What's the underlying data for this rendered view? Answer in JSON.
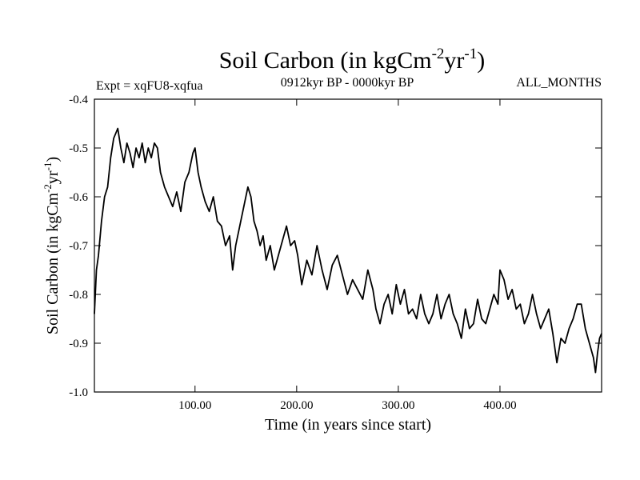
{
  "header": {
    "title_main": "Soil Carbon (in kgCm",
    "title_sup1": "-2",
    "title_mid": "yr",
    "title_sup2": "-1",
    "title_end": ")",
    "expt_label": "Expt = xqFU8-xqfua",
    "period_label": "0912kyr BP - 0000kyr BP",
    "months_label": "ALL_MONTHS"
  },
  "chart_data": {
    "type": "line",
    "xlabel": "Time (in years since start)",
    "ylabel": {
      "main": "Soil Carbon (in kgCm",
      "sup1": "-2",
      "mid": "yr",
      "sup2": "-1",
      "end": ")"
    },
    "xlim": [
      1,
      500
    ],
    "ylim": [
      -1.0,
      -0.4
    ],
    "xticks": [
      100,
      200,
      300,
      400
    ],
    "xtick_labels": [
      "100.00",
      "200.00",
      "300.00",
      "400.00"
    ],
    "yticks": [
      -0.4,
      -0.5,
      -0.6,
      -0.7,
      -0.8,
      -0.9,
      -1.0
    ],
    "ytick_labels": [
      "-0.4",
      "-0.5",
      "-0.6",
      "-0.7",
      "-0.8",
      "-0.9",
      "-1.0"
    ],
    "series": [
      {
        "name": "Soil Carbon",
        "x": [
          1,
          3,
          5,
          8,
          11,
          14,
          17,
          20,
          22,
          24,
          27,
          30,
          33,
          36,
          39,
          42,
          45,
          48,
          51,
          54,
          57,
          60,
          63,
          66,
          70,
          74,
          78,
          82,
          86,
          90,
          94,
          98,
          100,
          103,
          106,
          110,
          114,
          118,
          122,
          126,
          130,
          134,
          137,
          140,
          144,
          148,
          152,
          155,
          158,
          161,
          164,
          167,
          170,
          174,
          178,
          182,
          186,
          190,
          194,
          198,
          201,
          205,
          210,
          215,
          220,
          225,
          230,
          235,
          240,
          245,
          250,
          255,
          260,
          265,
          270,
          275,
          278,
          282,
          286,
          290,
          294,
          298,
          302,
          306,
          310,
          314,
          318,
          322,
          326,
          330,
          334,
          338,
          342,
          346,
          350,
          354,
          358,
          362,
          366,
          370,
          374,
          378,
          382,
          386,
          390,
          394,
          398,
          400,
          404,
          408,
          412,
          416,
          420,
          424,
          428,
          432,
          436,
          440,
          444,
          448,
          452,
          456,
          460,
          464,
          468,
          472,
          476,
          480,
          484,
          488,
          492,
          494,
          496,
          498,
          500
        ],
        "y": [
          -0.84,
          -0.75,
          -0.72,
          -0.65,
          -0.6,
          -0.58,
          -0.52,
          -0.48,
          -0.47,
          -0.46,
          -0.5,
          -0.53,
          -0.49,
          -0.51,
          -0.54,
          -0.5,
          -0.52,
          -0.49,
          -0.53,
          -0.5,
          -0.52,
          -0.49,
          -0.5,
          -0.55,
          -0.58,
          -0.6,
          -0.62,
          -0.59,
          -0.63,
          -0.57,
          -0.55,
          -0.51,
          -0.5,
          -0.55,
          -0.58,
          -0.61,
          -0.63,
          -0.6,
          -0.65,
          -0.66,
          -0.7,
          -0.68,
          -0.75,
          -0.7,
          -0.66,
          -0.62,
          -0.58,
          -0.6,
          -0.65,
          -0.67,
          -0.7,
          -0.68,
          -0.73,
          -0.7,
          -0.75,
          -0.72,
          -0.69,
          -0.66,
          -0.7,
          -0.69,
          -0.72,
          -0.78,
          -0.73,
          -0.76,
          -0.7,
          -0.75,
          -0.79,
          -0.74,
          -0.72,
          -0.76,
          -0.8,
          -0.77,
          -0.79,
          -0.81,
          -0.75,
          -0.79,
          -0.83,
          -0.86,
          -0.82,
          -0.8,
          -0.84,
          -0.78,
          -0.82,
          -0.79,
          -0.84,
          -0.83,
          -0.85,
          -0.8,
          -0.84,
          -0.86,
          -0.84,
          -0.8,
          -0.85,
          -0.82,
          -0.8,
          -0.84,
          -0.86,
          -0.89,
          -0.83,
          -0.87,
          -0.86,
          -0.81,
          -0.85,
          -0.86,
          -0.83,
          -0.8,
          -0.82,
          -0.75,
          -0.77,
          -0.81,
          -0.79,
          -0.83,
          -0.82,
          -0.86,
          -0.84,
          -0.8,
          -0.84,
          -0.87,
          -0.85,
          -0.83,
          -0.88,
          -0.94,
          -0.89,
          -0.9,
          -0.87,
          -0.85,
          -0.82,
          -0.82,
          -0.87,
          -0.9,
          -0.93,
          -0.96,
          -0.92,
          -0.89,
          -0.88
        ]
      }
    ]
  }
}
